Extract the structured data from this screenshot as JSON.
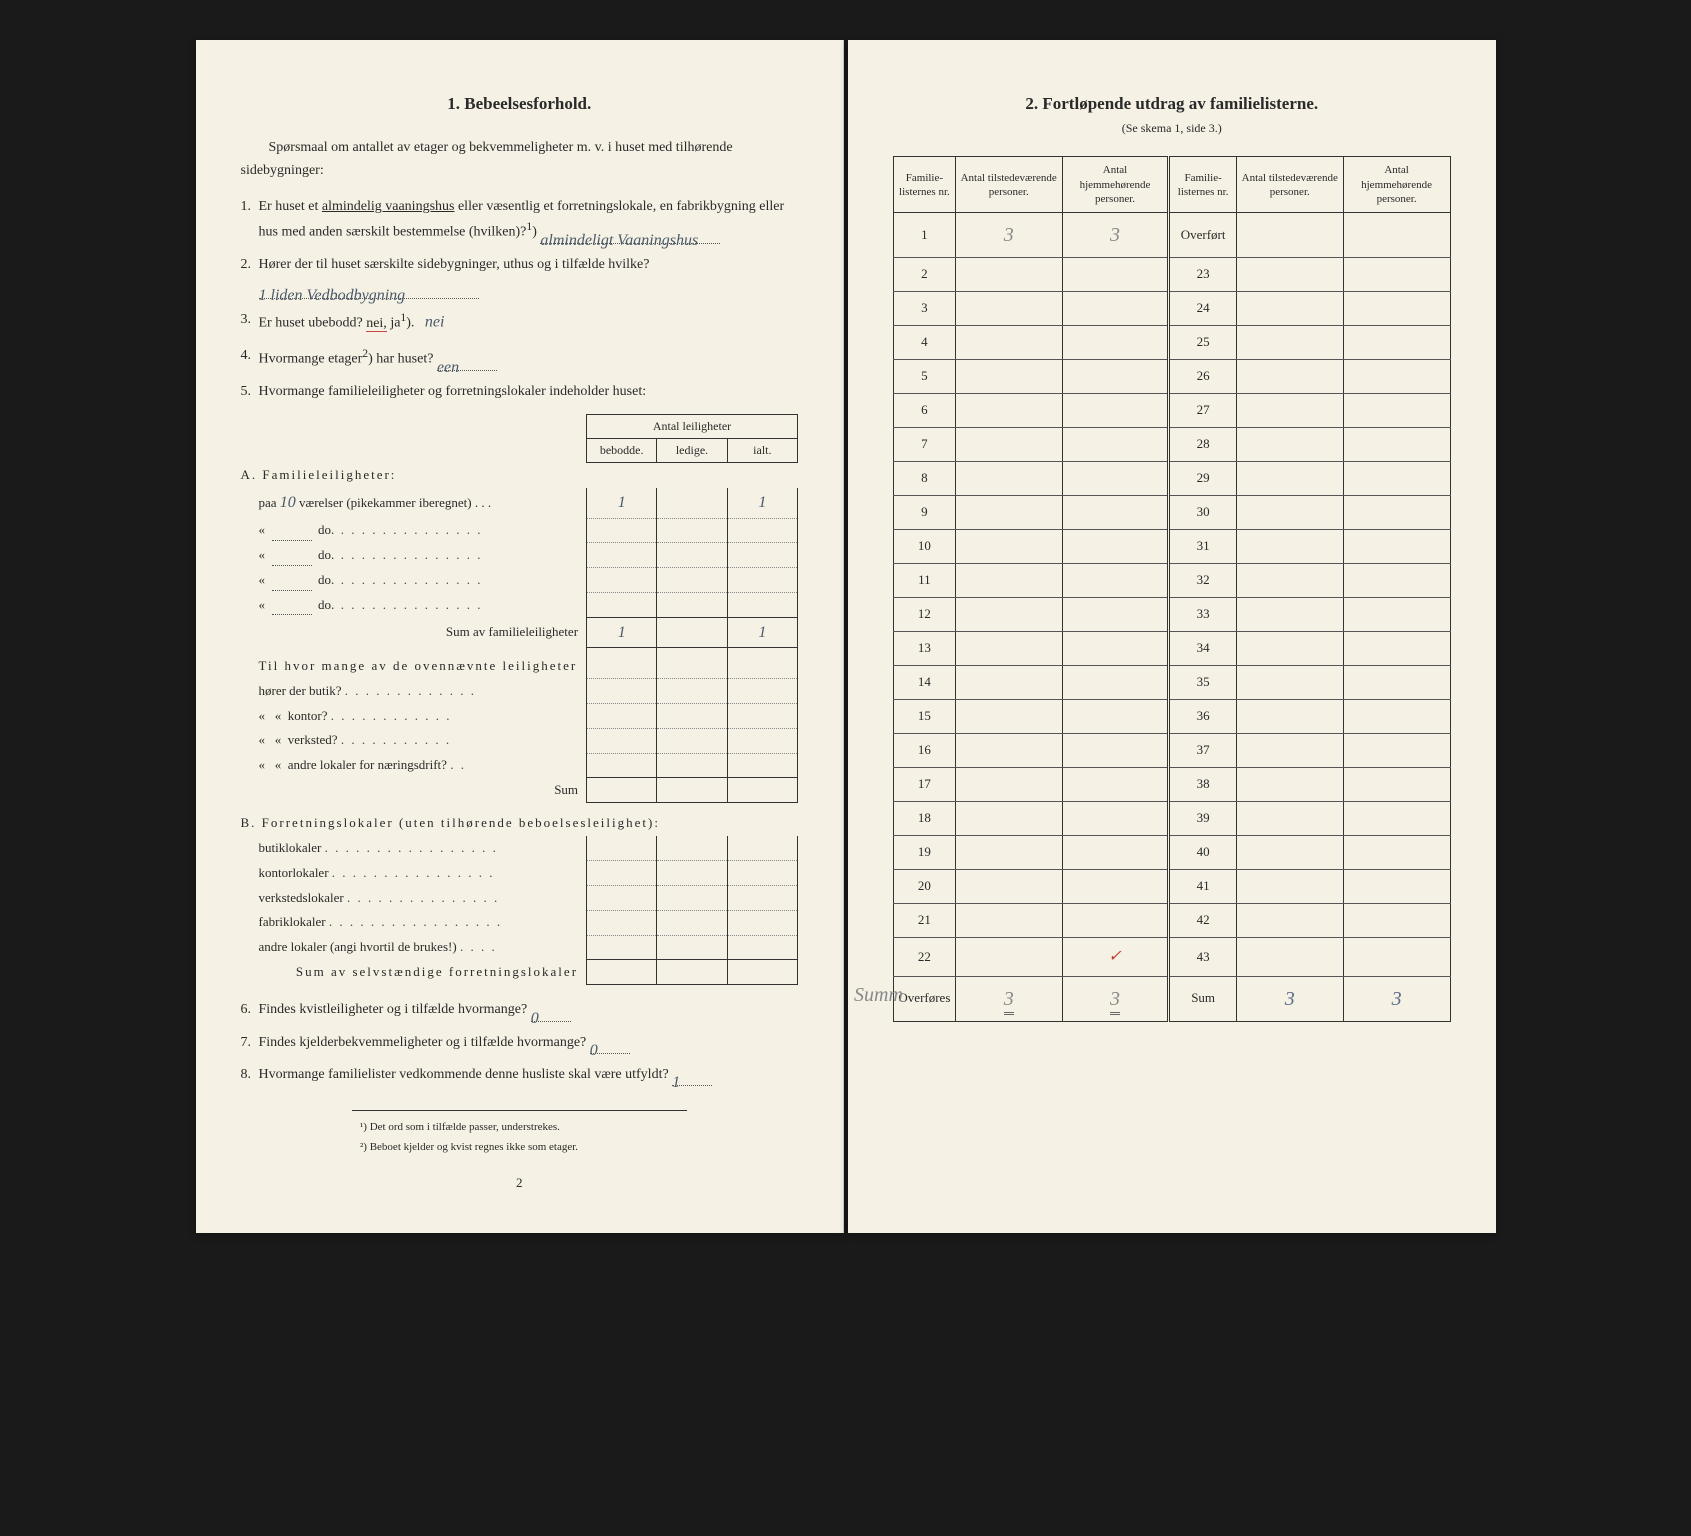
{
  "left": {
    "title": "1.   Bebeelsesforhold.",
    "intro": "Spørsmaal om antallet av etager og bekvemmeligheter m. v. i huset med tilhørende sidebygninger:",
    "q1": {
      "num": "1.",
      "pre": "Er huset et ",
      "underlined": "almindelig vaaningshus",
      "mid": " eller væsentlig et forretnings­lokale, en fabrikbygning eller hus med anden særskilt bestem­melse (hvilken)?",
      "sup": "1",
      "answer": "almindeligt Vaaningshus"
    },
    "q2": {
      "num": "2.",
      "text": "Hører der til huset særskilte sidebygninger, uthus og i tilfælde hvilke?",
      "answer": "1 liden Vedbodbygning"
    },
    "q3": {
      "num": "3.",
      "text": "Er huset ubebodd? ",
      "nei": "nei,",
      "ja": "ja",
      "sup": "1",
      "close": ").",
      "answer": "nei"
    },
    "q4": {
      "num": "4.",
      "text": "Hvormange etager",
      "sup": "2",
      "close": ") har huset?",
      "answer": "een"
    },
    "q5": {
      "num": "5.",
      "text": "Hvormange familieleiligheter og forretningslokaler indeholder huset:"
    },
    "table": {
      "header_top": "Antal leiligheter",
      "h_bebodde": "be­bodde.",
      "h_ledige": "ledige.",
      "h_ialt": "ialt.",
      "A": {
        "head": "A. Familieleiligheter:",
        "paa": "paa",
        "paa_val": "10",
        "paa_tail": " værelser (pikekammer iberegnet)  .  .  .",
        "do": "do.",
        "sum": "Sum av familieleiligheter",
        "row1_b": "1",
        "row1_i": "1",
        "sum_b": "1",
        "sum_i": "1",
        "sub_intro": "Til hvor mange av de ovennævnte leiligheter",
        "sub_butik": "hører der butik?",
        "sub_kontor": "kontor?",
        "sub_verksted": "verksted?",
        "sub_andre": "andre lokaler for næringsdrift?",
        "sub_sum": "Sum"
      },
      "B": {
        "head": "B. Forretningslokaler (uten tilhørende be­boelsesleilighet):",
        "butik": "butiklokaler",
        "kontor": "kontorlokaler",
        "verksted": "verkstedslokaler",
        "fabrik": "fabriklokaler",
        "andre": "andre lokaler (angi hvortil de brukes!)",
        "sum": "Sum av selvstændige forretningslokaler"
      }
    },
    "q6": {
      "num": "6.",
      "text": "Findes kvistleiligheter og i tilfælde hvormange?",
      "answer": "0"
    },
    "q7": {
      "num": "7.",
      "text": "Findes kjelderbekvemmeligheter og i tilfælde hvormange?",
      "answer": "0"
    },
    "q8": {
      "num": "8.",
      "text": "Hvormange familielister vedkommende denne husliste skal være utfyldt?",
      "answer": "1"
    },
    "footnote1": "¹) Det ord som i tilfælde passer, understrekes.",
    "footnote2": "²) Beboet kjelder og kvist regnes ikke som etager.",
    "pagenum": "2"
  },
  "right": {
    "title": "2.   Fortløpende utdrag av familielisterne.",
    "subtitle": "(Se skema 1, side 3.)",
    "headers": {
      "col1": "Familie­listernes nr.",
      "col2": "Antal tilstedeværende personer.",
      "col3": "Antal hjemmehørende personer.",
      "col4": "Familie­listernes nr.",
      "col5": "Antal tilstedeværende personer.",
      "col6": "Antal hjemmehørende personer."
    },
    "left_rows": [
      {
        "n": "1",
        "a": "3",
        "b": "3"
      },
      {
        "n": "2",
        "a": "",
        "b": ""
      },
      {
        "n": "3",
        "a": "",
        "b": ""
      },
      {
        "n": "4",
        "a": "",
        "b": ""
      },
      {
        "n": "5",
        "a": "",
        "b": ""
      },
      {
        "n": "6",
        "a": "",
        "b": ""
      },
      {
        "n": "7",
        "a": "",
        "b": ""
      },
      {
        "n": "8",
        "a": "",
        "b": ""
      },
      {
        "n": "9",
        "a": "",
        "b": ""
      },
      {
        "n": "10",
        "a": "",
        "b": ""
      },
      {
        "n": "11",
        "a": "",
        "b": ""
      },
      {
        "n": "12",
        "a": "",
        "b": ""
      },
      {
        "n": "13",
        "a": "",
        "b": ""
      },
      {
        "n": "14",
        "a": "",
        "b": ""
      },
      {
        "n": "15",
        "a": "",
        "b": ""
      },
      {
        "n": "16",
        "a": "",
        "b": ""
      },
      {
        "n": "17",
        "a": "",
        "b": ""
      },
      {
        "n": "18",
        "a": "",
        "b": ""
      },
      {
        "n": "19",
        "a": "",
        "b": ""
      },
      {
        "n": "20",
        "a": "",
        "b": ""
      },
      {
        "n": "21",
        "a": "",
        "b": ""
      },
      {
        "n": "22",
        "a": "",
        "b": ""
      }
    ],
    "right_rows": [
      {
        "n": "Overført",
        "a": "",
        "b": ""
      },
      {
        "n": "23",
        "a": "",
        "b": ""
      },
      {
        "n": "24",
        "a": "",
        "b": ""
      },
      {
        "n": "25",
        "a": "",
        "b": ""
      },
      {
        "n": "26",
        "a": "",
        "b": ""
      },
      {
        "n": "27",
        "a": "",
        "b": ""
      },
      {
        "n": "28",
        "a": "",
        "b": ""
      },
      {
        "n": "29",
        "a": "",
        "b": ""
      },
      {
        "n": "30",
        "a": "",
        "b": ""
      },
      {
        "n": "31",
        "a": "",
        "b": ""
      },
      {
        "n": "32",
        "a": "",
        "b": ""
      },
      {
        "n": "33",
        "a": "",
        "b": ""
      },
      {
        "n": "34",
        "a": "",
        "b": ""
      },
      {
        "n": "35",
        "a": "",
        "b": ""
      },
      {
        "n": "36",
        "a": "",
        "b": ""
      },
      {
        "n": "37",
        "a": "",
        "b": ""
      },
      {
        "n": "38",
        "a": "",
        "b": ""
      },
      {
        "n": "39",
        "a": "",
        "b": ""
      },
      {
        "n": "40",
        "a": "",
        "b": ""
      },
      {
        "n": "41",
        "a": "",
        "b": ""
      },
      {
        "n": "42",
        "a": "",
        "b": ""
      },
      {
        "n": "43",
        "a": "",
        "b": ""
      }
    ],
    "footer_left_label": "Overføres",
    "footer_left_a": "3",
    "footer_left_b": "3",
    "footer_right_label": "Sum",
    "footer_right_a": "3",
    "footer_right_b": "3",
    "sum_handwritten": "Summ"
  }
}
